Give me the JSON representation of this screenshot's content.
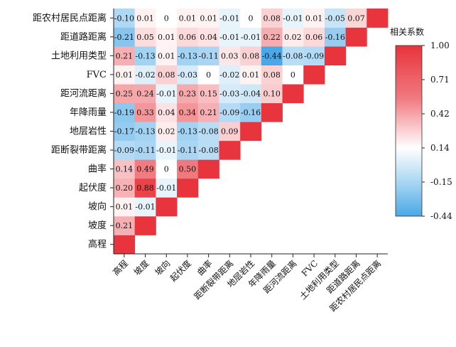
{
  "chart_data": {
    "type": "heatmap",
    "triangle": "lower",
    "variables": [
      "高程",
      "坡度",
      "坡向",
      "起伏度",
      "曲率",
      "距断裂带距离",
      "地层岩性",
      "年降雨量",
      "距河流距离",
      "FVC",
      "土地利用类型",
      "距道路距离",
      "距农村居民点距离"
    ],
    "row_labels": [
      "距农村居民点距离",
      "距道路距离",
      "土地利用类型",
      "FVC",
      "距河流距离",
      "年降雨量",
      "地层岩性",
      "距断裂带距离",
      "曲率",
      "起伏度",
      "坡向",
      "坡度",
      "高程"
    ],
    "col_labels": [
      "高程",
      "坡度",
      "坡向",
      "起伏度",
      "曲率",
      "距断裂带距离",
      "地层岩性",
      "年降雨量",
      "距河流距离",
      "FVC",
      "土地利用类型",
      "距道路距离",
      "距农村居民点距离"
    ],
    "matrix": [
      [
        1.0
      ],
      [
        0.21,
        1.0
      ],
      [
        0.01,
        -0.01,
        1.0
      ],
      [
        0.2,
        0.88,
        -0.01,
        1.0
      ],
      [
        0.14,
        0.49,
        0,
        0.5,
        1.0
      ],
      [
        -0.09,
        -0.11,
        -0.01,
        -0.11,
        -0.08,
        1.0
      ],
      [
        -0.17,
        -0.13,
        0.02,
        -0.13,
        -0.08,
        0.09,
        1.0
      ],
      [
        -0.19,
        0.33,
        0.04,
        0.34,
        0.21,
        -0.09,
        -0.16,
        1.0
      ],
      [
        0.25,
        0.24,
        -0.01,
        0.23,
        0.15,
        -0.03,
        -0.04,
        0.1,
        1.0
      ],
      [
        0.01,
        -0.02,
        0.08,
        -0.03,
        0,
        -0.02,
        0.01,
        0.08,
        0,
        1.0
      ],
      [
        0.21,
        -0.13,
        0.01,
        -0.13,
        -0.11,
        0.03,
        0.08,
        -0.44,
        -0.08,
        -0.09,
        1.0
      ],
      [
        -0.21,
        0.05,
        0.01,
        0.06,
        0.04,
        -0.01,
        -0.01,
        0.22,
        0.02,
        0.06,
        -0.16,
        1.0
      ],
      [
        -0.1,
        0.01,
        0,
        0.01,
        0.01,
        -0.01,
        0,
        0.08,
        -0.01,
        0.01,
        -0.05,
        0.07,
        1.0
      ]
    ],
    "colorbar": {
      "title": "相关系数",
      "ticks": [
        "1.00",
        "0.71",
        "0.42",
        "0.14",
        "-0.15",
        "-0.44"
      ],
      "min": -0.44,
      "max": 1.0,
      "colors": [
        "#4aa8e6",
        "#ffffff",
        "#e8343c"
      ]
    }
  }
}
